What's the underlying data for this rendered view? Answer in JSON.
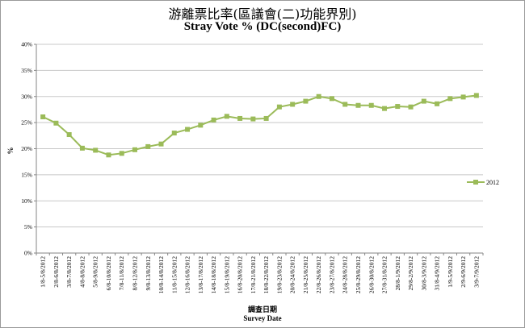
{
  "title_zh": "游離票比率(區議會(二)功能界別)",
  "title_en": "Stray Vote % (DC(second)FC)",
  "colors": {
    "series": "#9bbb59",
    "grid": "#c8c8c8",
    "axis": "#868686"
  },
  "chart_data": {
    "type": "line",
    "title": "Stray Vote % (DC(second)FC)",
    "xlabel": "Survey Date",
    "xlabel_zh": "調查日期",
    "ylabel": "%",
    "ylim": [
      0,
      40
    ],
    "y_ticks": [
      "0%",
      "5%",
      "10%",
      "15%",
      "20%",
      "25%",
      "30%",
      "35%",
      "40%"
    ],
    "grid": true,
    "legend_position": "right",
    "categories": [
      "1/8-5/8/2012",
      "2/8-6/8/2012",
      "3/8-7/8/2012",
      "4/8-8/8/2012",
      "5/8-9/8/2012",
      "6/8-10/8/2012",
      "7/8-11/8/2012",
      "8/8-12/8/2012",
      "9/8-13/8/2012",
      "10/8-14/8/2012",
      "11/8-15/8/2012",
      "12/8-16/8/2012",
      "13/8-17/8/2012",
      "14/8-18/8/2012",
      "15/8-19/8/2012",
      "16/8-20/8/2012",
      "17/8-21/8/2012",
      "18/8-22/8/2012",
      "19/8-23/8/2012",
      "20/8-24/8/2012",
      "21/8-25/8/2012",
      "22/8-26/8/2012",
      "23/8-27/8/2012",
      "24/8-28/8/2012",
      "25/8-29/8/2012",
      "26/8-30/8/2012",
      "27/8-31/8/2012",
      "28/8-1/9/2012",
      "29/8-2/9/2012",
      "30/8-3/9/2012",
      "31/8-4/9/2012",
      "1/9-5/9/2012",
      "2/9-6/9/2012",
      "3/9-7/9/2012"
    ],
    "series": [
      {
        "name": "2012",
        "values": [
          26.1,
          24.9,
          22.7,
          20.1,
          19.7,
          18.8,
          19.1,
          19.8,
          20.4,
          20.9,
          23.0,
          23.7,
          24.5,
          25.5,
          26.2,
          25.8,
          25.7,
          25.8,
          28.0,
          28.5,
          29.1,
          30.0,
          29.6,
          28.5,
          28.3,
          28.3,
          27.7,
          28.1,
          28.0,
          29.1,
          28.6,
          29.6,
          29.9,
          30.2
        ]
      }
    ]
  }
}
